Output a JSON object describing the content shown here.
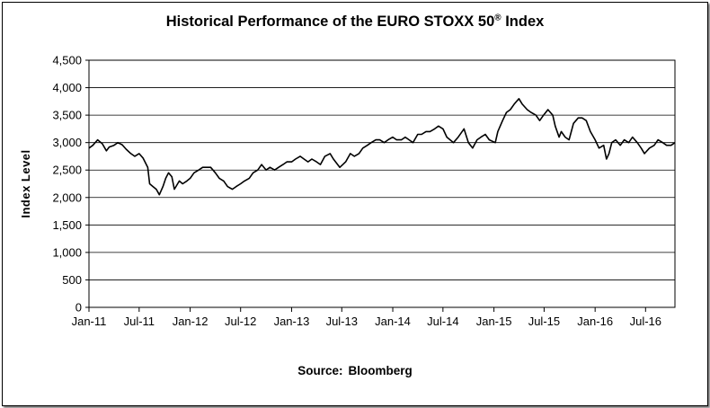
{
  "title": {
    "text": "Historical Performance of the EURO STOXX 50",
    "sup": "®",
    "suffix": " Index"
  },
  "source": {
    "label": "Source:",
    "name": "Bloomberg"
  },
  "chart_data": {
    "type": "line",
    "title": "Historical Performance of the EURO STOXX 50® Index",
    "xlabel": "",
    "ylabel": "Index Level",
    "ylim": [
      0,
      4500
    ],
    "yticks": [
      0,
      500,
      1000,
      1500,
      2000,
      2500,
      3000,
      3500,
      4000,
      4500
    ],
    "ytick_labels": [
      "0",
      "500",
      "1,000",
      "1,500",
      "2,000",
      "2,500",
      "3,000",
      "3,500",
      "4,000",
      "4,500"
    ],
    "xlim": [
      "2011-01-01",
      "2016-10-15"
    ],
    "xticks": [
      "2011-01-01",
      "2011-07-01",
      "2012-01-01",
      "2012-07-01",
      "2013-01-01",
      "2013-07-01",
      "2014-01-01",
      "2014-07-01",
      "2015-01-01",
      "2015-07-01",
      "2016-01-01",
      "2016-07-01"
    ],
    "xtick_labels": [
      "Jan-11",
      "Jul-11",
      "Jan-12",
      "Jul-12",
      "Jan-13",
      "Jul-13",
      "Jan-14",
      "Jul-14",
      "Jan-15",
      "Jul-15",
      "Jan-16",
      "Jul-16"
    ],
    "grid": "horizontal",
    "line_color": "#000000",
    "series": [
      {
        "x": [
          "2011-01-01",
          "2011-01-15",
          "2011-02-01",
          "2011-02-18",
          "2011-03-05",
          "2011-03-15",
          "2011-04-01",
          "2011-04-15",
          "2011-05-01",
          "2011-05-15",
          "2011-06-01",
          "2011-06-15",
          "2011-07-01",
          "2011-07-15",
          "2011-08-01",
          "2011-08-08",
          "2011-08-20",
          "2011-09-01",
          "2011-09-12",
          "2011-09-25",
          "2011-10-05",
          "2011-10-15",
          "2011-10-27",
          "2011-11-05",
          "2011-11-23",
          "2011-12-05",
          "2011-12-20",
          "2012-01-01",
          "2012-01-15",
          "2012-02-01",
          "2012-02-15",
          "2012-03-01",
          "2012-03-15",
          "2012-04-01",
          "2012-04-15",
          "2012-05-01",
          "2012-05-15",
          "2012-06-01",
          "2012-06-15",
          "2012-07-01",
          "2012-07-15",
          "2012-08-01",
          "2012-08-15",
          "2012-09-01",
          "2012-09-15",
          "2012-10-01",
          "2012-10-15",
          "2012-11-01",
          "2012-11-15",
          "2012-12-01",
          "2012-12-15",
          "2013-01-01",
          "2013-01-15",
          "2013-02-01",
          "2013-02-15",
          "2013-03-01",
          "2013-03-15",
          "2013-04-01",
          "2013-04-15",
          "2013-05-01",
          "2013-05-20",
          "2013-06-01",
          "2013-06-24",
          "2013-07-15",
          "2013-08-01",
          "2013-08-15",
          "2013-09-01",
          "2013-09-15",
          "2013-10-01",
          "2013-10-15",
          "2013-11-01",
          "2013-11-15",
          "2013-12-01",
          "2013-12-15",
          "2014-01-01",
          "2014-01-15",
          "2014-02-01",
          "2014-02-15",
          "2014-03-01",
          "2014-03-15",
          "2014-04-01",
          "2014-04-15",
          "2014-05-01",
          "2014-05-15",
          "2014-06-01",
          "2014-06-15",
          "2014-07-01",
          "2014-07-15",
          "2014-08-08",
          "2014-08-25",
          "2014-09-15",
          "2014-10-01",
          "2014-10-16",
          "2014-11-01",
          "2014-11-15",
          "2014-12-01",
          "2014-12-15",
          "2015-01-06",
          "2015-01-15",
          "2015-02-01",
          "2015-02-15",
          "2015-03-01",
          "2015-03-15",
          "2015-04-01",
          "2015-04-13",
          "2015-05-01",
          "2015-05-15",
          "2015-06-01",
          "2015-06-15",
          "2015-06-29",
          "2015-07-15",
          "2015-08-01",
          "2015-08-10",
          "2015-08-24",
          "2015-09-01",
          "2015-09-15",
          "2015-09-29",
          "2015-10-15",
          "2015-11-01",
          "2015-11-15",
          "2015-11-30",
          "2015-12-15",
          "2016-01-01",
          "2016-01-15",
          "2016-02-01",
          "2016-02-11",
          "2016-02-20",
          "2016-03-01",
          "2016-03-15",
          "2016-04-01",
          "2016-04-15",
          "2016-05-01",
          "2016-05-15",
          "2016-06-01",
          "2016-06-15",
          "2016-06-27",
          "2016-07-15",
          "2016-08-01",
          "2016-08-15",
          "2016-09-01",
          "2016-09-15",
          "2016-10-01",
          "2016-10-15"
        ],
        "y": [
          2900,
          2950,
          3050,
          2980,
          2850,
          2920,
          2950,
          3000,
          2960,
          2880,
          2800,
          2750,
          2800,
          2720,
          2550,
          2250,
          2200,
          2150,
          2050,
          2200,
          2350,
          2450,
          2380,
          2150,
          2300,
          2250,
          2300,
          2350,
          2450,
          2500,
          2550,
          2550,
          2550,
          2450,
          2350,
          2300,
          2200,
          2150,
          2200,
          2250,
          2300,
          2350,
          2450,
          2500,
          2600,
          2500,
          2550,
          2500,
          2550,
          2600,
          2650,
          2650,
          2700,
          2750,
          2700,
          2650,
          2700,
          2650,
          2600,
          2750,
          2800,
          2700,
          2550,
          2650,
          2800,
          2750,
          2800,
          2900,
          2950,
          3000,
          3050,
          3050,
          3000,
          3050,
          3100,
          3050,
          3050,
          3100,
          3050,
          3000,
          3150,
          3150,
          3200,
          3200,
          3250,
          3300,
          3250,
          3100,
          3000,
          3100,
          3250,
          3000,
          2900,
          3050,
          3100,
          3150,
          3050,
          3000,
          3200,
          3400,
          3550,
          3600,
          3700,
          3800,
          3700,
          3600,
          3550,
          3500,
          3400,
          3500,
          3600,
          3500,
          3300,
          3100,
          3200,
          3100,
          3050,
          3350,
          3450,
          3450,
          3400,
          3200,
          3050,
          2900,
          2950,
          2700,
          2800,
          3000,
          3050,
          2950,
          3050,
          3000,
          3100,
          3000,
          2900,
          2800,
          2900,
          2950,
          3050,
          3000,
          2950,
          2950,
          3000
        ]
      }
    ]
  }
}
